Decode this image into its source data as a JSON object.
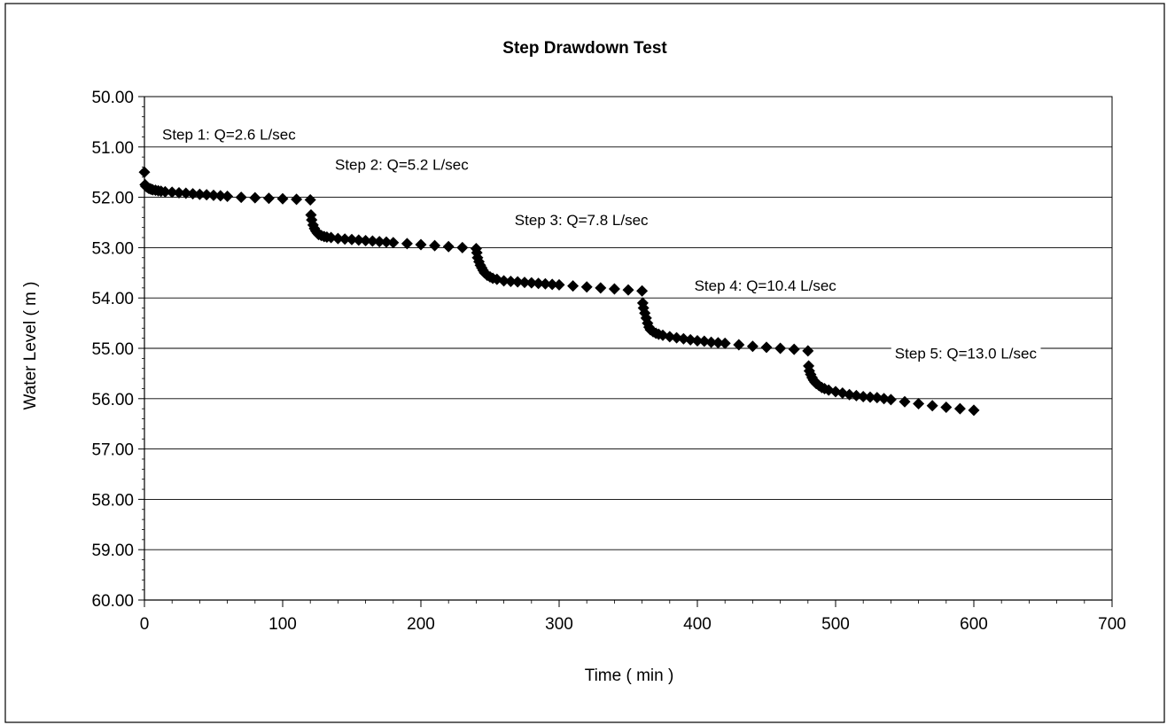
{
  "chart_data": {
    "type": "scatter",
    "title": "Step Drawdown Test",
    "xlabel": "Time ( min )",
    "ylabel": "Water Level ( m )",
    "xlim": [
      0,
      700
    ],
    "ylim": [
      50,
      60
    ],
    "y_inverted": true,
    "grid": "horizontal",
    "legend": "none",
    "marker": "diamond",
    "marker_color": "#000000",
    "x_ticks": [
      "0",
      "100",
      "200",
      "300",
      "400",
      "500",
      "600",
      "700"
    ],
    "x_tick_values": [
      0,
      100,
      200,
      300,
      400,
      500,
      600,
      700
    ],
    "y_ticks": [
      "50.00",
      "51.00",
      "52.00",
      "53.00",
      "54.00",
      "55.00",
      "56.00",
      "57.00",
      "58.00",
      "59.00",
      "60.00"
    ],
    "y_tick_values": [
      50,
      51,
      52,
      53,
      54,
      55,
      56,
      57,
      58,
      59,
      60
    ],
    "annotations": [
      {
        "text": "Step 1: Q=2.6 L/sec",
        "x": 0,
        "y": 50.75
      },
      {
        "text": "Step 2: Q=5.2 L/sec",
        "x": 125,
        "y": 51.35
      },
      {
        "text": "Step 3: Q=7.8 L/sec",
        "x": 255,
        "y": 52.45
      },
      {
        "text": "Step 4: Q=10.4 L/sec",
        "x": 385,
        "y": 53.75
      },
      {
        "text": "Step 5: Q=13.0 L/sec",
        "x": 530,
        "y": 55.1
      }
    ],
    "series": [
      {
        "x": [
          0,
          0.5,
          1,
          2,
          3,
          4,
          5,
          6,
          8,
          10,
          12,
          15,
          20,
          25,
          30,
          35,
          40,
          45,
          50,
          55,
          60,
          70,
          80,
          90,
          100,
          110,
          120,
          120.5,
          121,
          122,
          123,
          124,
          125,
          126,
          128,
          130,
          132,
          135,
          140,
          145,
          150,
          155,
          160,
          165,
          170,
          175,
          180,
          190,
          200,
          210,
          220,
          230,
          240,
          240.5,
          241,
          242,
          243,
          244,
          245,
          246,
          248,
          250,
          252,
          255,
          260,
          265,
          270,
          275,
          280,
          285,
          290,
          295,
          300,
          310,
          320,
          330,
          340,
          350,
          360,
          360.5,
          361,
          362,
          363,
          364,
          365,
          366,
          368,
          370,
          372,
          375,
          380,
          385,
          390,
          395,
          400,
          405,
          410,
          415,
          420,
          430,
          440,
          450,
          460,
          470,
          480,
          480.5,
          481,
          482,
          483,
          484,
          485,
          486,
          488,
          490,
          492,
          495,
          500,
          505,
          510,
          515,
          520,
          525,
          530,
          535,
          540,
          550,
          560,
          570,
          580,
          590,
          600
        ],
        "y": [
          51.5,
          51.75,
          51.78,
          51.8,
          51.82,
          51.83,
          51.84,
          51.85,
          51.86,
          51.87,
          51.88,
          51.89,
          51.9,
          51.91,
          51.92,
          51.93,
          51.94,
          51.95,
          51.96,
          51.97,
          51.98,
          52.0,
          52.01,
          52.02,
          52.03,
          52.04,
          52.05,
          52.35,
          52.45,
          52.55,
          52.62,
          52.67,
          52.71,
          52.74,
          52.76,
          52.78,
          52.79,
          52.8,
          52.82,
          52.83,
          52.84,
          52.85,
          52.86,
          52.87,
          52.88,
          52.89,
          52.9,
          52.92,
          52.94,
          52.96,
          52.98,
          53.0,
          53.02,
          53.1,
          53.2,
          53.28,
          53.35,
          53.4,
          53.45,
          53.5,
          53.55,
          53.58,
          53.61,
          53.63,
          53.66,
          53.67,
          53.68,
          53.69,
          53.7,
          53.71,
          53.72,
          53.73,
          53.74,
          53.76,
          53.78,
          53.8,
          53.82,
          53.84,
          53.86,
          54.1,
          54.2,
          54.3,
          54.4,
          54.5,
          54.58,
          54.63,
          54.67,
          54.7,
          54.72,
          54.74,
          54.77,
          54.79,
          54.81,
          54.83,
          54.85,
          54.86,
          54.88,
          54.89,
          54.9,
          54.93,
          54.96,
          54.98,
          55.0,
          55.02,
          55.05,
          55.35,
          55.45,
          55.52,
          55.58,
          55.63,
          55.67,
          55.7,
          55.74,
          55.78,
          55.8,
          55.83,
          55.86,
          55.89,
          55.92,
          55.94,
          55.96,
          55.97,
          55.98,
          56.0,
          56.02,
          56.06,
          56.1,
          56.14,
          56.17,
          56.2,
          56.23
        ]
      }
    ]
  }
}
